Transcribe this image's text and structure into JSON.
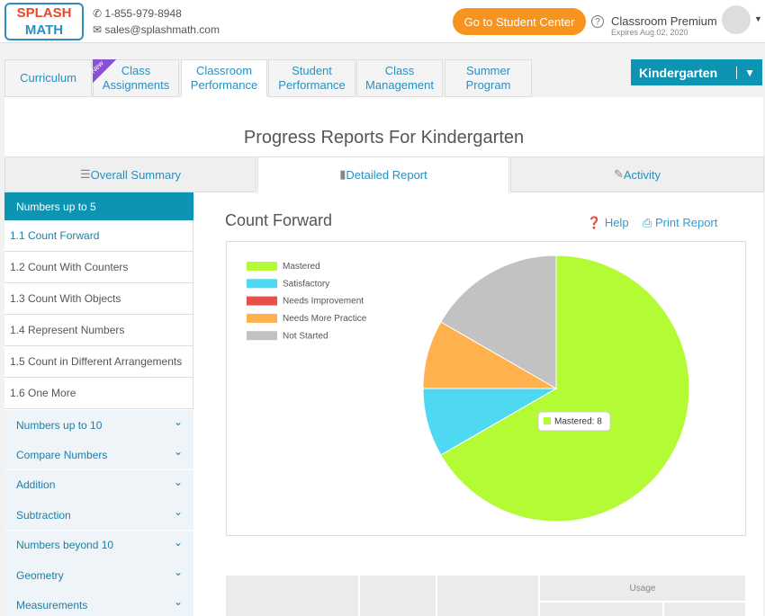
{
  "header": {
    "logo_top": "SPLASH",
    "logo_bottom": "MATH",
    "phone": "1-855-979-8948",
    "email": "sales@splashmath.com",
    "student_center": "Go to Student Center",
    "plan": "Classroom Premium",
    "expires": "Expires Aug 02, 2020"
  },
  "nav": {
    "badge": "New",
    "tabs": [
      [
        "Curriculum"
      ],
      [
        "Class",
        "Assignments"
      ],
      [
        "Classroom",
        "Performance"
      ],
      [
        "Student",
        "Performance"
      ],
      [
        "Class",
        "Management"
      ],
      [
        "Summer",
        "Program"
      ]
    ],
    "grade": "Kindergarten"
  },
  "page_title": "Progress Reports For Kindergarten",
  "report_tabs": [
    "Overall Summary",
    "Detailed Report",
    "Activity"
  ],
  "sidebar": {
    "open_topic": "Numbers up to 5",
    "subtopics": [
      "1.1 Count Forward",
      "1.2  Count With Counters",
      "1.3  Count With Objects",
      "1.4  Represent Numbers",
      "1.5  Count in Different Arrangements",
      "1.6  One More"
    ],
    "topics": [
      "Numbers up to 10",
      "Compare Numbers",
      "Addition",
      "Subtraction",
      "Numbers beyond 10",
      "Geometry",
      "Measurements"
    ]
  },
  "content": {
    "title": "Count Forward",
    "help": "Help",
    "print": "Print Report"
  },
  "chart_data": {
    "type": "pie",
    "categories": [
      "Mastered",
      "Satisfactory",
      "Needs Improvement",
      "Needs More Practice",
      "Not Started"
    ],
    "values": [
      8,
      1,
      0,
      1,
      2
    ],
    "colors": [
      "#b3fb34",
      "#4ed8f2",
      "#e8504a",
      "#ffb14e",
      "#c2c2c2"
    ],
    "tooltip": "Mastered: 8",
    "legend": "top-left"
  },
  "table": {
    "group_header": "Usage"
  }
}
